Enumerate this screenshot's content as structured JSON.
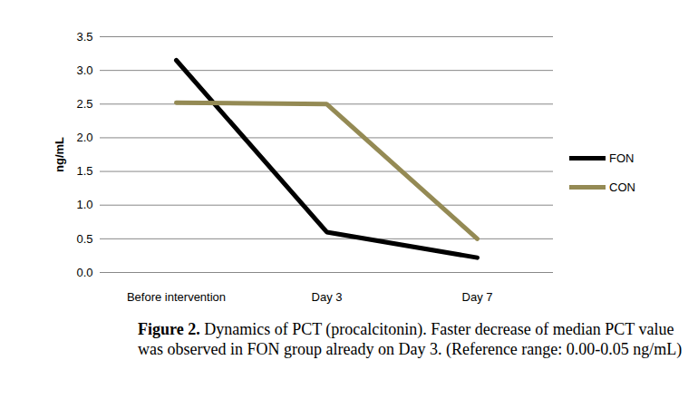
{
  "chart_data": {
    "type": "line",
    "caption": {
      "label": "Figure 2.",
      "text": "Dynamics of PCT (procalcitonin). Faster decrease of median PCT value was observed in FON group already on Day 3. (Reference range: 0.00-0.05 ng/mL)"
    },
    "y_label": "ng/mL",
    "categories": [
      "Before intervention",
      "Day 3",
      "Day 7"
    ],
    "series": [
      {
        "name": "FON",
        "color": "#000000",
        "values": [
          3.15,
          0.6,
          0.22
        ]
      },
      {
        "name": "CON",
        "color": "#948a54",
        "values": [
          2.52,
          2.5,
          0.5
        ]
      }
    ],
    "ylim": [
      0,
      3.5
    ],
    "yticks": [
      0,
      0.5,
      1,
      1.5,
      2,
      2.5,
      3,
      3.5
    ],
    "grid": true,
    "legend": "right"
  }
}
